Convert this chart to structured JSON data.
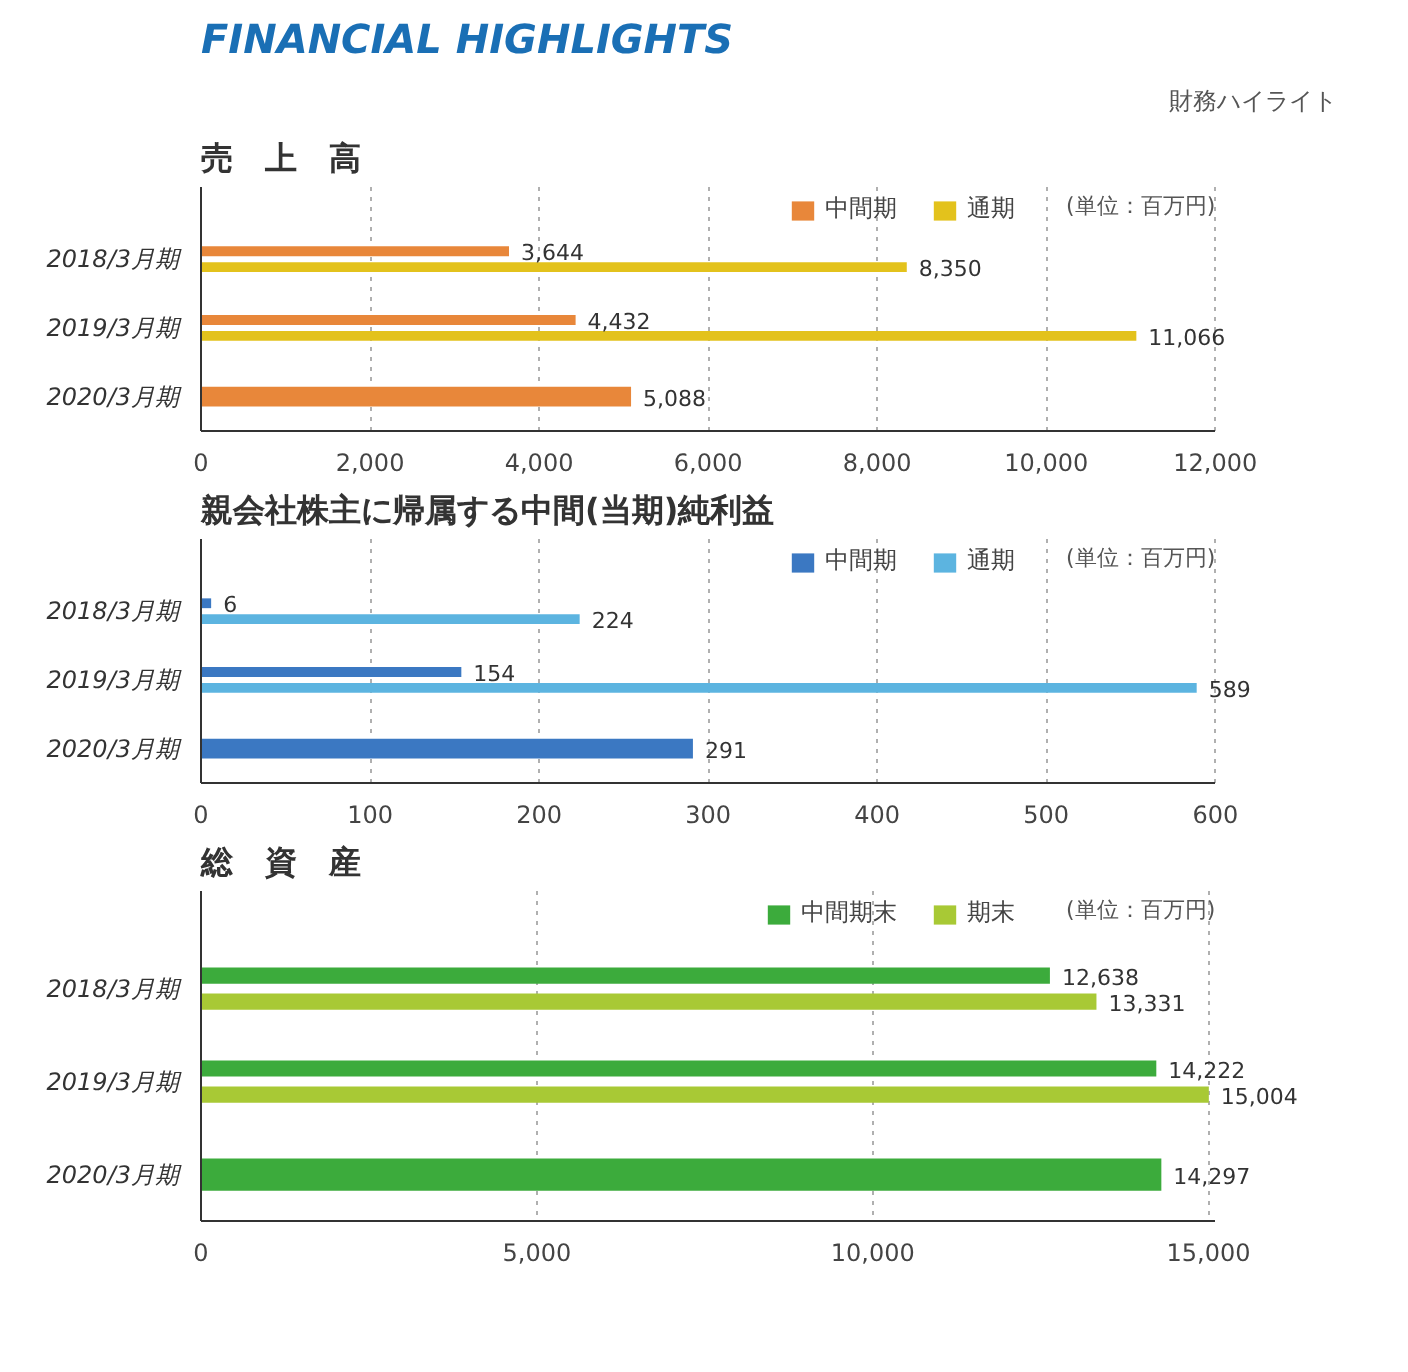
{
  "chart_data": [
    {
      "type": "bar",
      "orientation": "horizontal",
      "title": "売　上　高",
      "annotations": [
        "FINANCIAL HIGHLIGHTS",
        "財務ハイライト",
        "(単位：百万円)"
      ],
      "categories": [
        "2018/3月期",
        "2019/3月期",
        "2020/3月期"
      ],
      "series": [
        {
          "name": "中間期",
          "color": "#e8873a",
          "values": [
            3644,
            4432,
            5088
          ],
          "value_labels": [
            "3,644",
            "4,432",
            "5,088"
          ]
        },
        {
          "name": "通期",
          "color": "#e3c21c",
          "values": [
            8350,
            11066,
            null
          ],
          "value_labels": [
            "8,350",
            "11,066",
            null
          ]
        }
      ],
      "xlim": [
        0,
        12000
      ],
      "xticks": [
        0,
        {
          "value": 2000,
          "label": "2,000"
        },
        {
          "value": 4000,
          "label": "4,000"
        },
        {
          "value": 6000,
          "label": "6,000"
        },
        {
          "value": 8000,
          "label": "8,000"
        },
        {
          "value": 10000,
          "label": "10,000"
        },
        {
          "value": 12000,
          "label": "12,000"
        }
      ],
      "grid": "x",
      "legend": "top right"
    },
    {
      "type": "bar",
      "orientation": "horizontal",
      "title": "親会社株主に帰属する中間(当期)純利益",
      "annotations": [
        "(単位：百万円)"
      ],
      "categories": [
        "2018/3月期",
        "2019/3月期",
        "2020/3月期"
      ],
      "series": [
        {
          "name": "中間期",
          "color": "#3b78c2",
          "values": [
            6,
            154,
            291
          ]
        },
        {
          "name": "通期",
          "color": "#5cb4e0",
          "values": [
            224,
            589,
            null
          ]
        }
      ],
      "xlim": [
        0,
        600
      ],
      "xticks": [
        0,
        100,
        200,
        300,
        400,
        500,
        600
      ],
      "grid": "x",
      "legend": "top right",
      "data_labels": true
    },
    {
      "type": "bar",
      "orientation": "horizontal",
      "title": "総　資　産",
      "annotations": [
        "(単位：百万円)"
      ],
      "categories": [
        "2018/3月期",
        "2019/3月期",
        "2020/3月期"
      ],
      "series": [
        {
          "name": "中間期末",
          "color": "#3cab3c",
          "values": [
            12638,
            14222,
            14297
          ],
          "value_labels": [
            "12,638",
            "14,222",
            "14,297"
          ]
        },
        {
          "name": "期末",
          "color": "#a8c935",
          "values": [
            13331,
            15004,
            null
          ],
          "value_labels": [
            "13,331",
            "15,004",
            null
          ]
        }
      ],
      "xlim": [
        0,
        15100
      ],
      "xticks": [
        0,
        {
          "value": 5000,
          "label": "5,000"
        },
        {
          "value": 10000,
          "label": "10,000"
        },
        {
          "value": 15000,
          "label": "15,000"
        }
      ],
      "grid": "x",
      "legend": "top right"
    }
  ]
}
